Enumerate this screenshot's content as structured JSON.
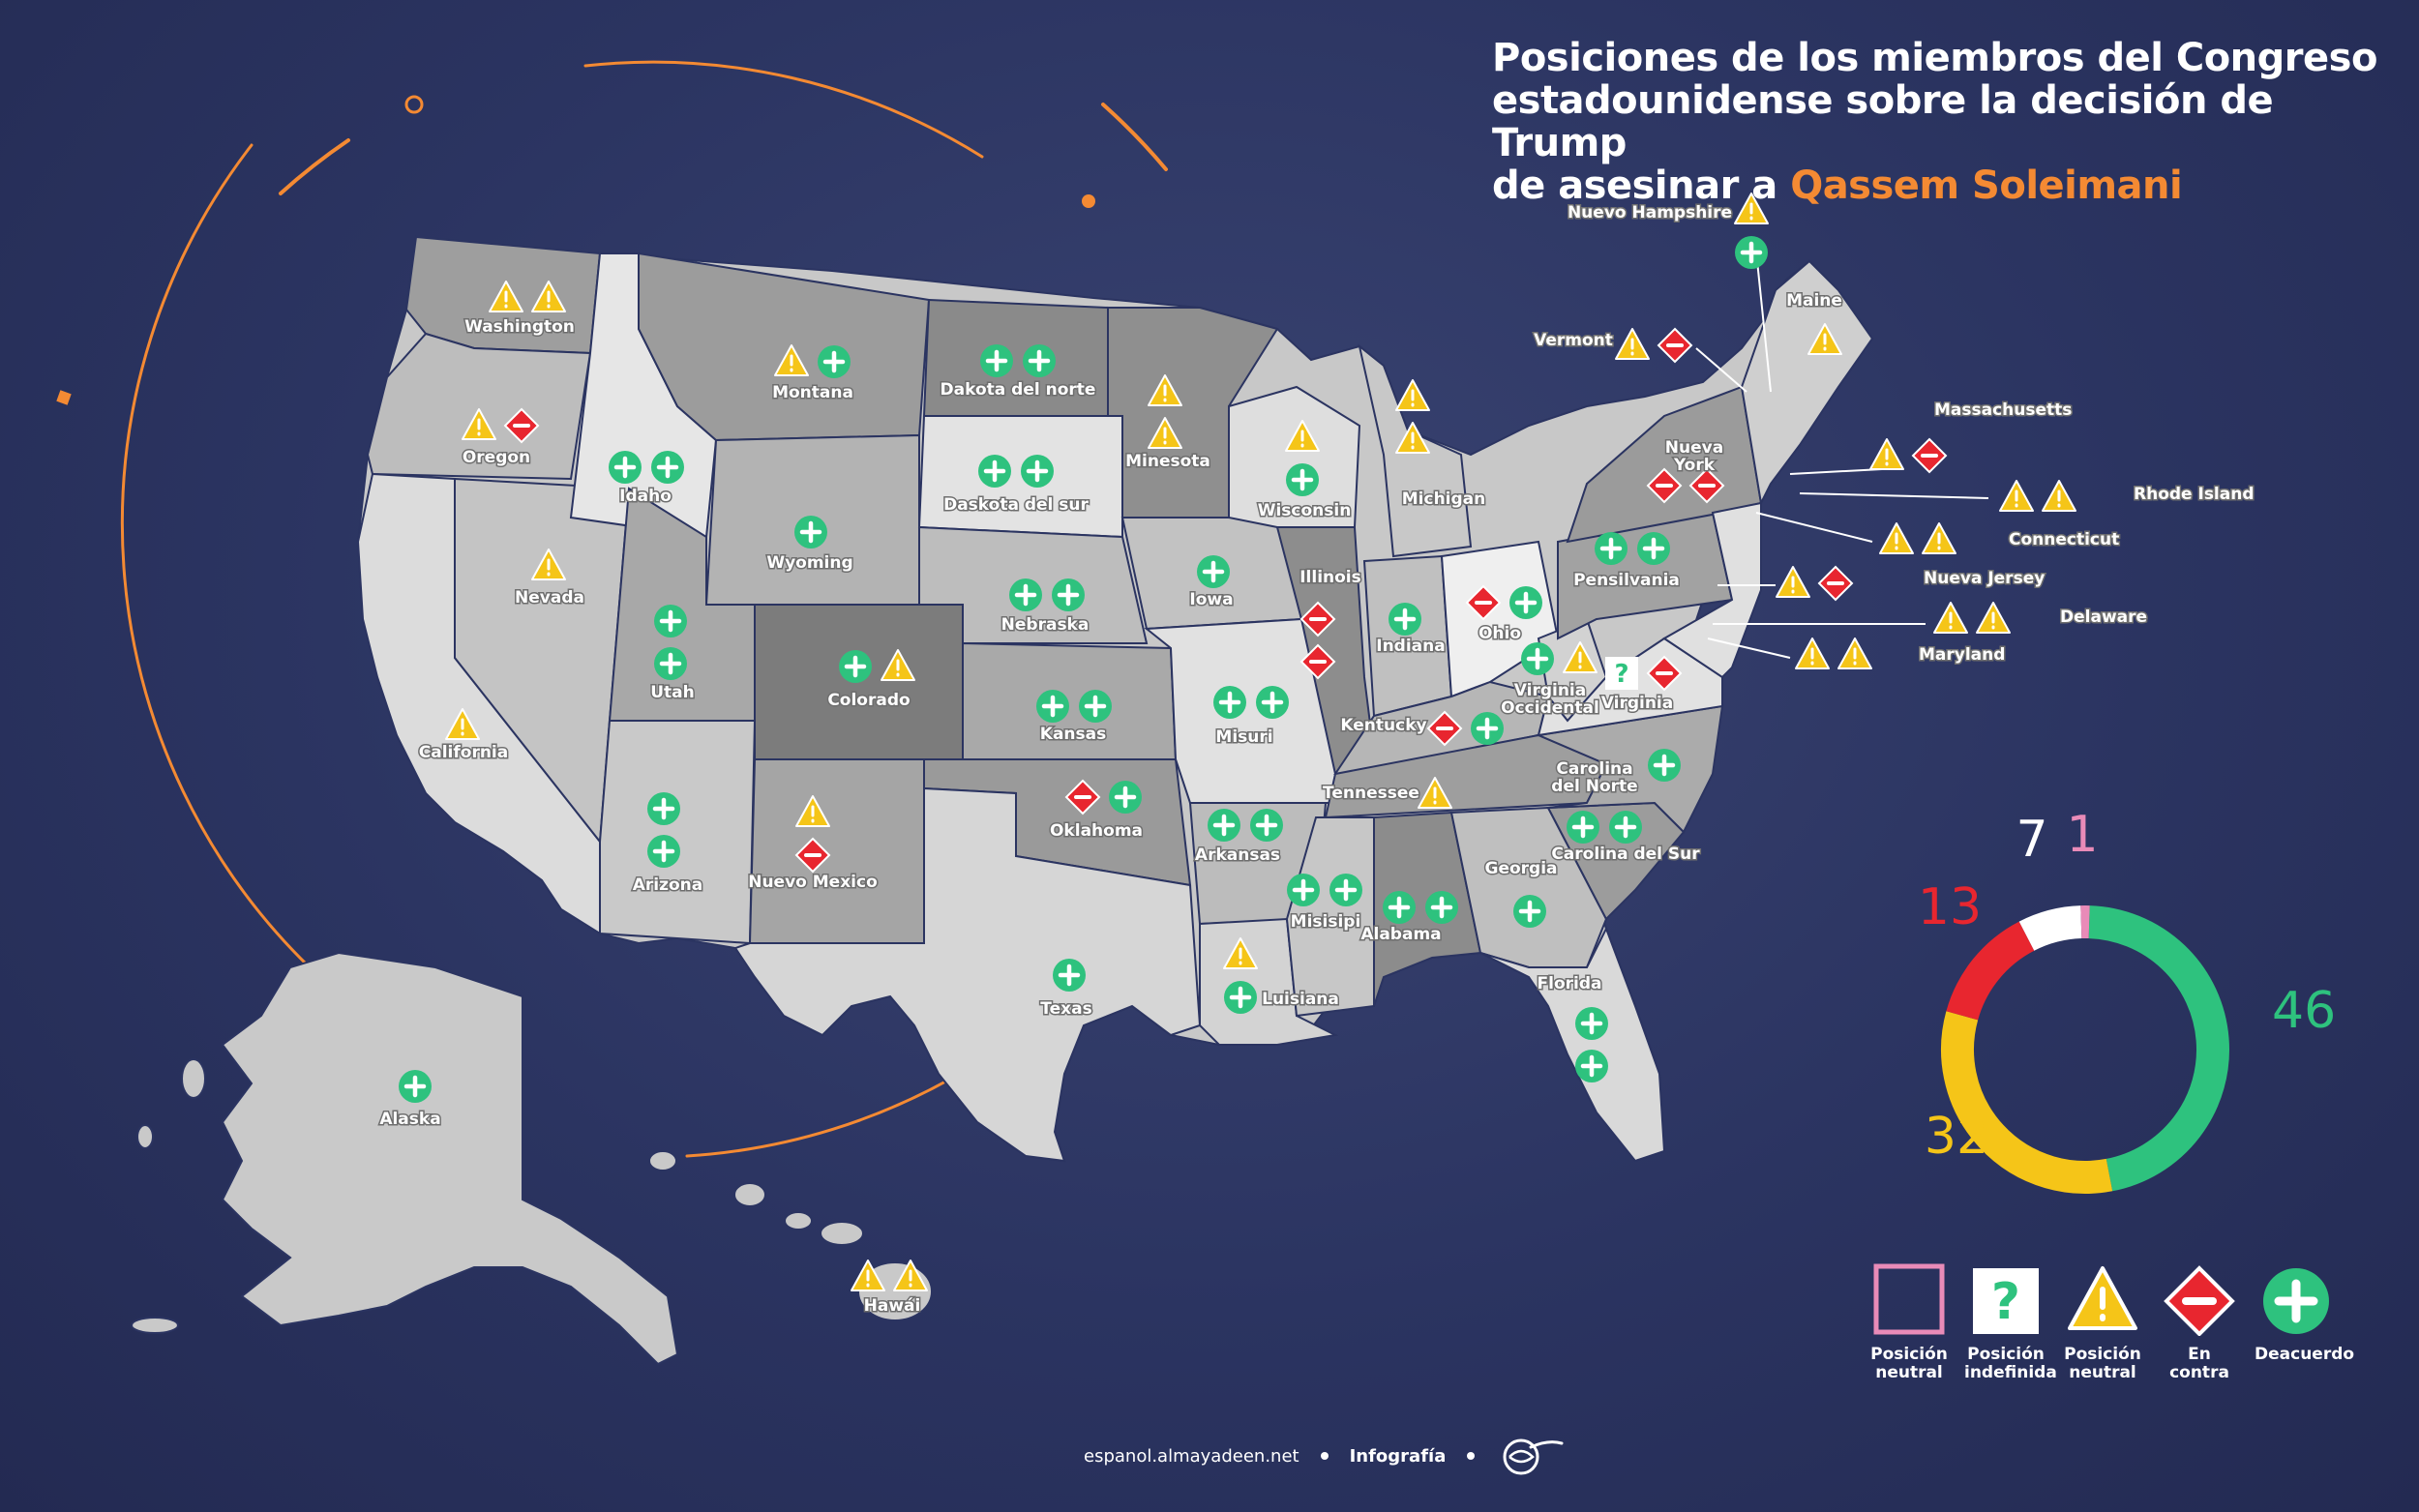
{
  "title": {
    "line1": "Posiciones de los miembros del Congreso",
    "line2": "estadounidense sobre la decisión de Trump",
    "line3_prefix": "de asesinar a ",
    "line3_accent": "Qassem Soleimani"
  },
  "colors": {
    "background": "#2b3461",
    "accent": "#f48a33",
    "agree": "#2ec27e",
    "against": "#e8262f",
    "neutral": "#f5c518",
    "undefined": "#ffffff",
    "neutral_pink": "#e98bb8"
  },
  "states": [
    {
      "label": "Washington",
      "icons": [
        "warn",
        "warn"
      ]
    },
    {
      "label": "Oregon",
      "icons": [
        "warn",
        "minus"
      ]
    },
    {
      "label": "California",
      "icons": [
        "warn"
      ]
    },
    {
      "label": "Nevada",
      "icons": [
        "warn"
      ]
    },
    {
      "label": "Idaho",
      "icons": [
        "plus",
        "plus"
      ]
    },
    {
      "label": "Montana",
      "icons": [
        "warn",
        "plus"
      ]
    },
    {
      "label": "Wyoming",
      "icons": [
        "plus"
      ]
    },
    {
      "label": "Utah",
      "icons": [
        "plus",
        "plus"
      ]
    },
    {
      "label": "Arizona",
      "icons": [
        "plus",
        "plus"
      ]
    },
    {
      "label": "Colorado",
      "icons": [
        "plus",
        "warn"
      ]
    },
    {
      "label": "Nuevo Mexico",
      "icons": [
        "warn",
        "minus"
      ]
    },
    {
      "label": "Dakota del norte",
      "icons": [
        "plus",
        "plus"
      ]
    },
    {
      "label": "Daskota del sur",
      "icons": [
        "plus",
        "plus"
      ]
    },
    {
      "label": "Nebraska",
      "icons": [
        "plus",
        "plus"
      ]
    },
    {
      "label": "Kansas",
      "icons": [
        "plus",
        "plus"
      ]
    },
    {
      "label": "Oklahoma",
      "icons": [
        "minus",
        "plus"
      ]
    },
    {
      "label": "Texas",
      "icons": [
        "plus"
      ]
    },
    {
      "label": "Minesota",
      "icons": [
        "warn",
        "warn"
      ]
    },
    {
      "label": "Iowa",
      "icons": [
        "plus"
      ]
    },
    {
      "label": "Misuri",
      "icons": [
        "plus",
        "plus"
      ]
    },
    {
      "label": "Arkansas",
      "icons": [
        "plus",
        "plus"
      ]
    },
    {
      "label": "Luisiana",
      "icons": [
        "warn",
        "plus"
      ]
    },
    {
      "label": "Wisconsin",
      "icons": [
        "warn",
        "plus"
      ]
    },
    {
      "label": "Illinois",
      "icons": [
        "minus",
        "minus"
      ]
    },
    {
      "label": "Michigan",
      "icons": [
        "warn",
        "warn"
      ]
    },
    {
      "label": "Indiana",
      "icons": [
        "plus"
      ]
    },
    {
      "label": "Ohio",
      "icons": [
        "minus",
        "plus"
      ]
    },
    {
      "label": "Kentucky",
      "icons": [
        "minus",
        "plus"
      ]
    },
    {
      "label": "Tennessee",
      "icons": [
        "warn"
      ]
    },
    {
      "label": "Misisipi",
      "icons": [
        "plus",
        "plus"
      ]
    },
    {
      "label": "Alabama",
      "icons": [
        "plus",
        "plus"
      ]
    },
    {
      "label": "Georgia",
      "icons": [
        "plus"
      ]
    },
    {
      "label": "Florida",
      "icons": [
        "plus",
        "plus"
      ]
    },
    {
      "label": "Carolina del Sur",
      "icons": [
        "plus",
        "plus"
      ]
    },
    {
      "label": "Carolina del Norte",
      "icons": [
        "plus"
      ]
    },
    {
      "label": "Virginia Occidental",
      "icons": [
        "plus",
        "warn"
      ]
    },
    {
      "label": "Virginia",
      "icons": [
        "undef",
        "minus"
      ]
    },
    {
      "label": "Pensilvania",
      "icons": [
        "plus",
        "plus"
      ]
    },
    {
      "label": "Nueva York",
      "icons": [
        "minus",
        "minus"
      ]
    },
    {
      "label": "Maine",
      "icons": [
        "warn"
      ]
    },
    {
      "label": "Nuevo Hampshire",
      "icons": [
        "warn",
        "plus"
      ]
    },
    {
      "label": "Vermont",
      "icons": [
        "warn",
        "minus"
      ]
    },
    {
      "label": "Massachusetts",
      "icons": [
        "warn",
        "minus"
      ]
    },
    {
      "label": "Rhode Island",
      "icons": [
        "warn",
        "warn"
      ]
    },
    {
      "label": "Connecticut",
      "icons": [
        "warn",
        "warn"
      ]
    },
    {
      "label": "Nueva Jersey",
      "icons": [
        "warn",
        "minus"
      ]
    },
    {
      "label": "Delaware",
      "icons": [
        "warn",
        "warn"
      ]
    },
    {
      "label": "Maryland",
      "icons": [
        "warn",
        "warn"
      ]
    },
    {
      "label": "Alaska",
      "icons": [
        "plus"
      ]
    },
    {
      "label": "Hawái",
      "icons": [
        "warn",
        "warn"
      ]
    }
  ],
  "summary": {
    "segments": [
      {
        "key": "agree",
        "value": 46,
        "color": "#2ec27e"
      },
      {
        "key": "neutral",
        "value": 32,
        "color": "#f5c518"
      },
      {
        "key": "against",
        "value": 13,
        "color": "#e8262f"
      },
      {
        "key": "undefined",
        "value": 7,
        "color": "#ffffff"
      },
      {
        "key": "neutral_pink",
        "value": 1,
        "color": "#e98bb8"
      }
    ],
    "labels": {
      "agree": "46",
      "neutral": "32",
      "against": "13",
      "undefined": "7",
      "neutral_pink": "1"
    }
  },
  "legend": [
    {
      "key": "neutral_pink",
      "label_line1": "Posición",
      "label_line2": "neutral"
    },
    {
      "key": "undefined",
      "label_line1": "Posición",
      "label_line2": "indefinida"
    },
    {
      "key": "neutral",
      "label_line1": "Posición",
      "label_line2": "neutral"
    },
    {
      "key": "against",
      "label_line1": "En",
      "label_line2": "contra"
    },
    {
      "key": "agree",
      "label_line1": "Deacuerdo",
      "label_line2": ""
    }
  ],
  "footer": {
    "site": "espanol.almayadeen.net",
    "section": "Infografía"
  }
}
